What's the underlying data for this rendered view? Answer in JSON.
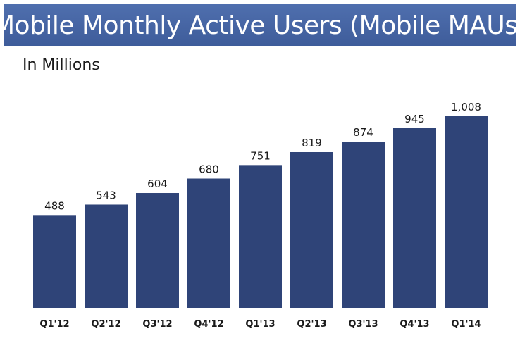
{
  "header": {
    "title": "Mobile Monthly Active Users (Mobile MAUs)",
    "subtitle": "In Millions"
  },
  "colors": {
    "banner": "#4565a3",
    "bar": "#2f4478",
    "axis": "#b0b0b0"
  },
  "chart_data": {
    "type": "bar",
    "title": "Mobile Monthly Active Users (Mobile MAUs)",
    "subtitle": "In Millions",
    "categories": [
      "Q1'12",
      "Q2'12",
      "Q3'12",
      "Q4'12",
      "Q1'13",
      "Q2'13",
      "Q3'13",
      "Q4'13",
      "Q1'14"
    ],
    "values": [
      488,
      543,
      604,
      680,
      751,
      819,
      874,
      945,
      1008
    ],
    "value_labels": [
      "488",
      "543",
      "604",
      "680",
      "751",
      "819",
      "874",
      "945",
      "1,008"
    ],
    "ylim": [
      0,
      1008
    ],
    "grid": false
  }
}
